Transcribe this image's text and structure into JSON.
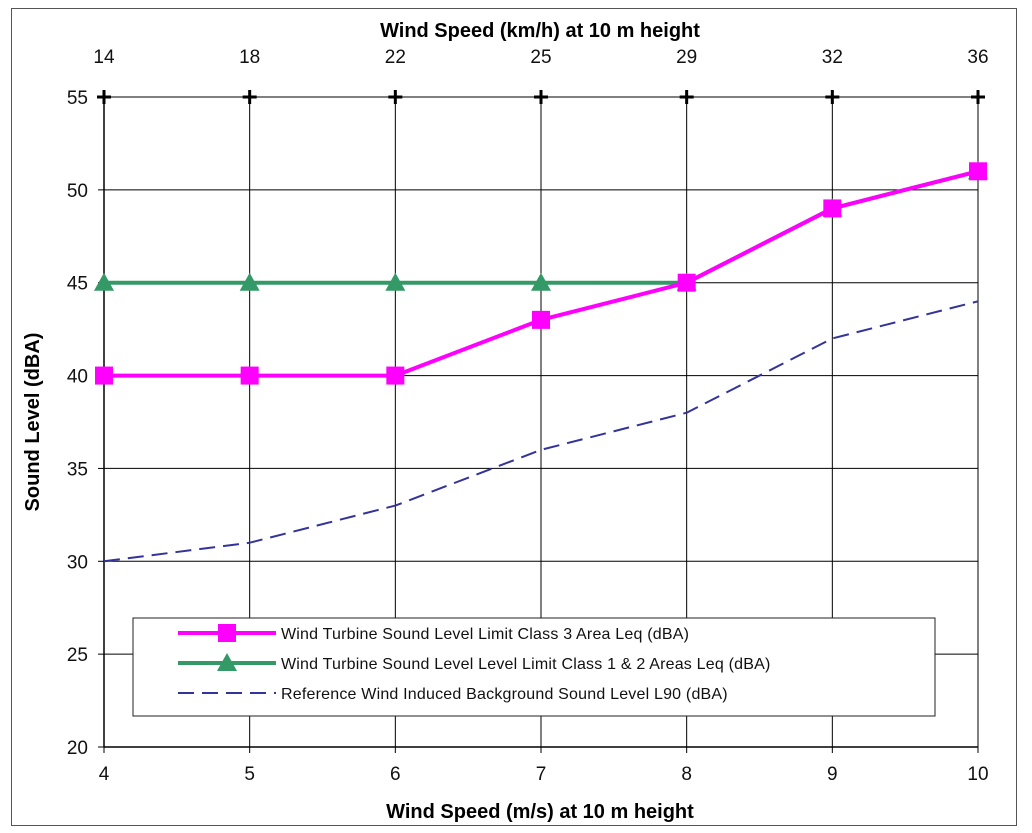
{
  "chart_data": {
    "type": "line",
    "title": "",
    "xlabel": "Wind Speed (m/s) at 10 m height",
    "x2label": "Wind Speed (km/h) at 10 m height",
    "ylabel": "Sound Level (dBA)",
    "x": [
      4,
      5,
      6,
      7,
      8,
      9,
      10
    ],
    "x_top_ticks": [
      "14",
      "18",
      "22",
      "25",
      "29",
      "32",
      "36"
    ],
    "xlim": [
      4,
      10
    ],
    "ylim": [
      20,
      55
    ],
    "y_ticks": [
      20,
      25,
      30,
      35,
      40,
      45,
      50,
      55
    ],
    "grid": true,
    "legend_position": "bottom",
    "series": [
      {
        "name": "Wind Turbine Sound Level Limit Class 3 Area Leq (dBA)",
        "values": [
          40,
          40,
          40,
          43,
          45,
          49,
          51
        ],
        "color": "#ff00ff",
        "marker": "square",
        "style": "solid"
      },
      {
        "name": "Wind Turbine Sound Level Level Limit Class 1 & 2 Areas Leq (dBA)",
        "values": [
          45,
          45,
          45,
          45,
          45,
          49,
          51
        ],
        "color": "#339966",
        "marker": "triangle",
        "style": "solid"
      },
      {
        "name": "Reference Wind Induced Background Sound Level L90 (dBA)",
        "values": [
          30,
          31,
          33,
          36,
          38,
          42,
          44
        ],
        "color": "#333399",
        "marker": "none",
        "style": "dashed"
      }
    ]
  }
}
